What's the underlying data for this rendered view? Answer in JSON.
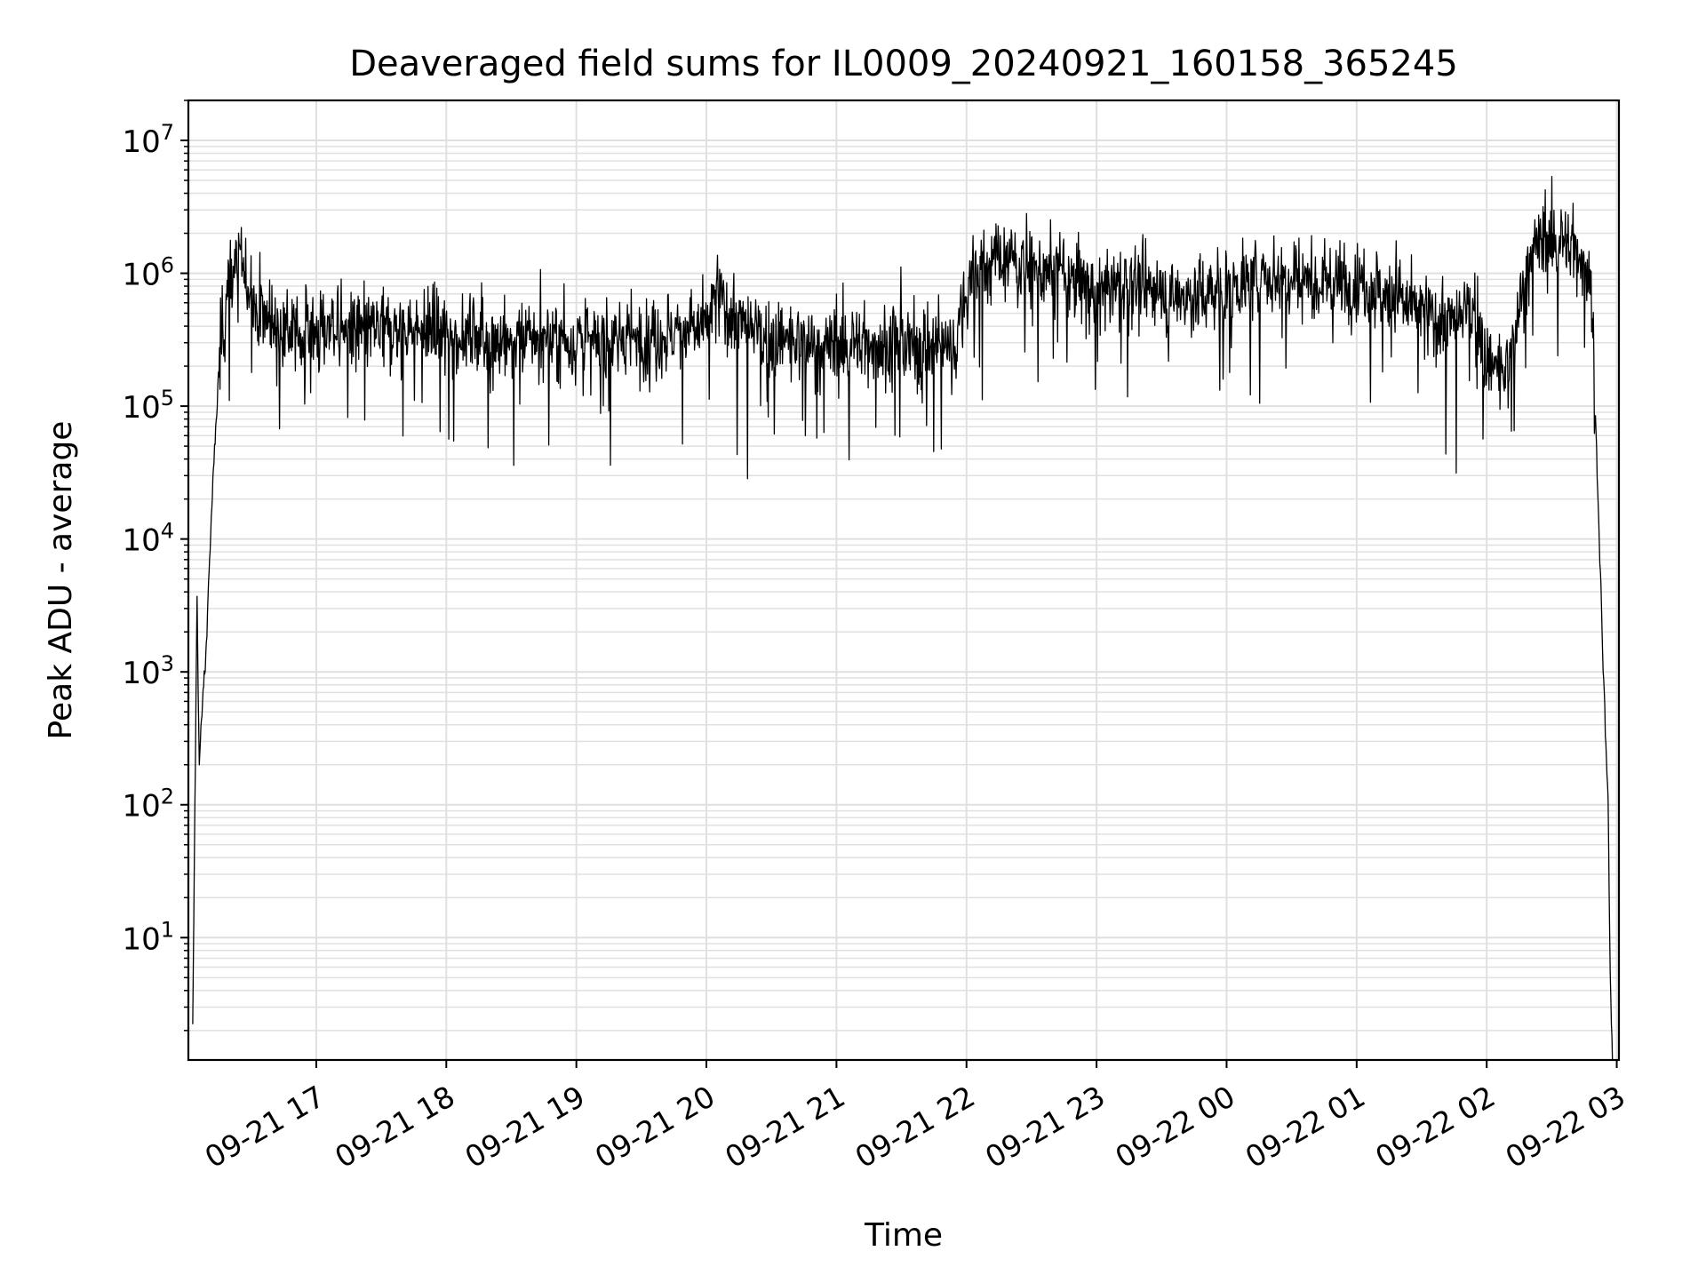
{
  "chart_data": {
    "type": "line",
    "title": "Deaveraged field sums for IL0009_20240921_160158_365245",
    "xlabel": "Time",
    "ylabel": "Peak ADU - average",
    "yscale": "log",
    "ylim": [
      1.2,
      20000000
    ],
    "xlim": [
      "2024-09-21 16:01",
      "2024-09-22 03:01"
    ],
    "grid": true,
    "grid_which": "both",
    "line_color": "#000000",
    "grid_color": "#e0e0e0",
    "x_ticks": [
      {
        "value": "2024-09-21 17:00",
        "label": "09-21 17"
      },
      {
        "value": "2024-09-21 18:00",
        "label": "09-21 18"
      },
      {
        "value": "2024-09-21 19:00",
        "label": "09-21 19"
      },
      {
        "value": "2024-09-21 20:00",
        "label": "09-21 20"
      },
      {
        "value": "2024-09-21 21:00",
        "label": "09-21 21"
      },
      {
        "value": "2024-09-21 22:00",
        "label": "09-21 22"
      },
      {
        "value": "2024-09-21 23:00",
        "label": "09-21 23"
      },
      {
        "value": "2024-09-22 00:00",
        "label": "09-22 00"
      },
      {
        "value": "2024-09-22 01:00",
        "label": "09-22 01"
      },
      {
        "value": "2024-09-22 02:00",
        "label": "09-22 02"
      },
      {
        "value": "2024-09-22 03:00",
        "label": "09-22 03"
      }
    ],
    "y_ticks": [
      {
        "value": 10,
        "base": "10",
        "exp": "1"
      },
      {
        "value": 100,
        "base": "10",
        "exp": "2"
      },
      {
        "value": 1000,
        "base": "10",
        "exp": "3"
      },
      {
        "value": 10000,
        "base": "10",
        "exp": "4"
      },
      {
        "value": 100000,
        "base": "10",
        "exp": "5"
      },
      {
        "value": 1000000,
        "base": "10",
        "exp": "6"
      },
      {
        "value": 10000000,
        "base": "10",
        "exp": "7"
      }
    ],
    "series": [
      {
        "x": [
          "2024-09-21 16:03",
          "2024-09-21 16:05",
          "2024-09-21 16:06",
          "2024-09-21 16:08",
          "2024-09-21 16:09",
          "2024-09-21 16:10",
          "2024-09-21 16:12",
          "2024-09-21 16:14",
          "2024-09-21 16:16",
          "2024-09-21 16:18",
          "2024-09-21 16:20",
          "2024-09-21 16:22",
          "2024-09-21 16:25",
          "2024-09-21 16:28",
          "2024-09-21 16:32",
          "2024-09-21 16:37",
          "2024-09-21 16:42",
          "2024-09-21 16:48",
          "2024-09-21 16:54",
          "2024-09-21 17:00",
          "2024-09-21 17:10",
          "2024-09-21 17:20",
          "2024-09-21 17:30",
          "2024-09-21 17:40",
          "2024-09-21 17:50",
          "2024-09-21 18:00",
          "2024-09-21 18:15",
          "2024-09-21 18:30",
          "2024-09-21 18:45",
          "2024-09-21 19:00",
          "2024-09-21 19:15",
          "2024-09-21 19:30",
          "2024-09-21 19:45",
          "2024-09-21 20:00",
          "2024-09-21 20:05",
          "2024-09-21 20:15",
          "2024-09-21 20:30",
          "2024-09-21 20:45",
          "2024-09-21 21:00",
          "2024-09-21 21:15",
          "2024-09-21 21:30",
          "2024-09-21 21:45",
          "2024-09-21 21:55",
          "2024-09-21 22:02",
          "2024-09-21 22:15",
          "2024-09-21 22:30",
          "2024-09-21 22:45",
          "2024-09-21 23:00",
          "2024-09-21 23:15",
          "2024-09-21 23:30",
          "2024-09-21 23:45",
          "2024-09-22 00:00",
          "2024-09-22 00:15",
          "2024-09-22 00:30",
          "2024-09-22 00:45",
          "2024-09-22 01:00",
          "2024-09-22 01:15",
          "2024-09-22 01:30",
          "2024-09-22 01:45",
          "2024-09-22 01:55",
          "2024-09-22 02:00",
          "2024-09-22 02:10",
          "2024-09-22 02:20",
          "2024-09-22 02:30",
          "2024-09-22 02:40",
          "2024-09-22 02:48",
          "2024-09-22 02:52",
          "2024-09-22 02:54",
          "2024-09-22 02:56",
          "2024-09-22 02:57",
          "2024-09-22 02:58"
        ],
        "values": [
          2,
          4000,
          200,
          800,
          1200,
          3500,
          20000,
          90000,
          300000,
          600000,
          900000,
          1200000,
          1200000,
          900000,
          600000,
          450000,
          400000,
          380000,
          360000,
          350000,
          380000,
          370000,
          360000,
          390000,
          370000,
          350000,
          330000,
          300000,
          310000,
          300000,
          310000,
          330000,
          350000,
          400000,
          700000,
          400000,
          320000,
          290000,
          280000,
          300000,
          280000,
          270000,
          300000,
          1000000,
          1300000,
          1100000,
          1000000,
          750000,
          850000,
          700000,
          650000,
          800000,
          900000,
          1000000,
          850000,
          900000,
          700000,
          500000,
          400000,
          600000,
          200000,
          180000,
          1500000,
          1800000,
          1600000,
          1000000,
          10000,
          800,
          100,
          5,
          1.2
        ]
      }
    ]
  }
}
